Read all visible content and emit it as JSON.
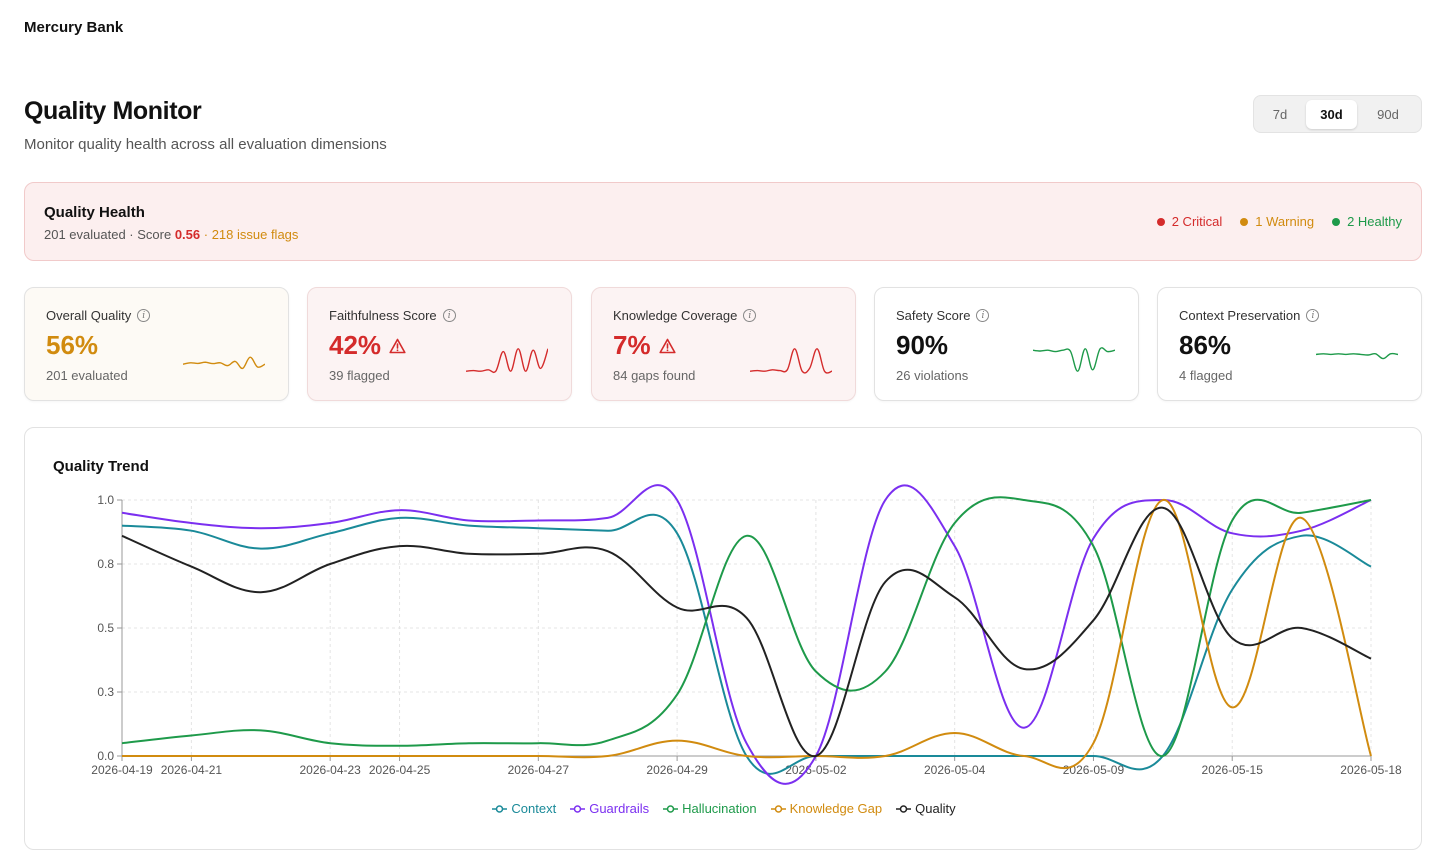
{
  "app": {
    "brand": "Mercury Bank"
  },
  "header": {
    "title": "Quality Monitor",
    "subtitle": "Monitor quality health across all evaluation dimensions",
    "ranges": [
      "7d",
      "30d",
      "90d"
    ],
    "selected_range": "30d"
  },
  "health": {
    "title": "Quality Health",
    "evaluated": "201 evaluated",
    "sep1": " · Score ",
    "score": "0.56",
    "sep2": " · ",
    "flags": "218 issue flags",
    "legend": [
      {
        "label": "2 Critical",
        "color": "#d42b2b"
      },
      {
        "label": "1 Warning",
        "color": "#d18b0f"
      },
      {
        "label": "2 Healthy",
        "color": "#1e9a4a"
      }
    ]
  },
  "cards": [
    {
      "label": "Overall Quality",
      "value": "56%",
      "sub": "201 evaluated",
      "color": "#d18b0f",
      "status": "warning",
      "spark": [
        0.35,
        0.4,
        0.38,
        0.42,
        0.37,
        0.4,
        0.3,
        0.45,
        0.2,
        0.6,
        0.25,
        0.35
      ]
    },
    {
      "label": "Faithfulness Score",
      "value": "42%",
      "sub": "39 flagged",
      "color": "#d42b2b",
      "status": "critical",
      "spark": [
        0.1,
        0.12,
        0.1,
        0.15,
        0.1,
        0.8,
        0.1,
        0.9,
        0.1,
        0.85,
        0.2,
        0.9
      ]
    },
    {
      "label": "Knowledge Coverage",
      "value": "7%",
      "sub": "84 gaps found",
      "color": "#d42b2b",
      "status": "critical",
      "spark": [
        0.1,
        0.12,
        0.1,
        0.15,
        0.12,
        0.15,
        0.9,
        0.1,
        0.2,
        0.9,
        0.1,
        0.1
      ]
    },
    {
      "label": "Safety Score",
      "value": "90%",
      "sub": "26 violations",
      "color": "#1e9a4a",
      "status": "healthy",
      "spark": [
        0.85,
        0.82,
        0.85,
        0.8,
        0.85,
        0.82,
        0.1,
        0.9,
        0.15,
        0.9,
        0.8,
        0.85
      ]
    },
    {
      "label": "Context Preservation",
      "value": "86%",
      "sub": "4 flagged",
      "color": "#1e9a4a",
      "status": "healthy",
      "spark": [
        0.7,
        0.72,
        0.7,
        0.72,
        0.7,
        0.72,
        0.7,
        0.68,
        0.72,
        0.55,
        0.72,
        0.7
      ]
    }
  ],
  "trend": {
    "title": "Quality Trend"
  },
  "chart_data": {
    "type": "line",
    "x": [
      "2026-04-19",
      "2026-04-21",
      "2026-04-22",
      "2026-04-23",
      "2026-04-25",
      "2026-04-26",
      "2026-04-27",
      "2026-04-28",
      "2026-04-29",
      "2026-04-30",
      "2026-05-02",
      "2026-05-03",
      "2026-05-04",
      "2026-05-05",
      "2026-05-09",
      "2026-05-12",
      "2026-05-15",
      "2026-05-16",
      "2026-05-18"
    ],
    "xticks": [
      "2026-04-19",
      "2026-04-21",
      "2026-04-23",
      "2026-04-25",
      "2026-04-27",
      "2026-04-29",
      "2026-05-02",
      "2026-05-04",
      "2026-05-09",
      "2026-05-15",
      "2026-05-18"
    ],
    "ylim": [
      0,
      1
    ],
    "yticks": [
      "0.0",
      "0.3",
      "0.5",
      "0.8",
      "1.0"
    ],
    "series": [
      {
        "name": "Context",
        "color": "#1a8a99",
        "values": [
          0.9,
          0.88,
          0.81,
          0.87,
          0.93,
          0.9,
          0.89,
          0.88,
          0.87,
          0.0,
          0.0,
          0.0,
          0.0,
          0.0,
          0.0,
          0.0,
          0.65,
          0.86,
          0.74
        ]
      },
      {
        "name": "Guardrails",
        "color": "#7b2ff0",
        "values": [
          0.95,
          0.91,
          0.89,
          0.91,
          0.96,
          0.92,
          0.92,
          0.93,
          1.0,
          0.05,
          0.0,
          1.0,
          0.82,
          0.11,
          0.85,
          1.0,
          0.87,
          0.88,
          1.0
        ]
      },
      {
        "name": "Hallucination",
        "color": "#1e9a4a",
        "values": [
          0.05,
          0.08,
          0.1,
          0.05,
          0.04,
          0.05,
          0.05,
          0.06,
          0.24,
          0.86,
          0.33,
          0.33,
          0.91,
          1.0,
          0.82,
          0.0,
          0.92,
          0.95,
          1.0
        ]
      },
      {
        "name": "Knowledge Gap",
        "color": "#d18b0f",
        "values": [
          0.0,
          0.0,
          0.0,
          0.0,
          0.0,
          0.0,
          0.0,
          0.0,
          0.06,
          0.0,
          0.0,
          0.0,
          0.09,
          0.0,
          0.05,
          1.0,
          0.19,
          0.93,
          0.0
        ]
      },
      {
        "name": "Quality",
        "color": "#222222",
        "values": [
          0.86,
          0.74,
          0.64,
          0.75,
          0.82,
          0.79,
          0.79,
          0.8,
          0.58,
          0.54,
          0.0,
          0.68,
          0.62,
          0.34,
          0.53,
          0.97,
          0.46,
          0.5,
          0.38
        ]
      }
    ]
  }
}
